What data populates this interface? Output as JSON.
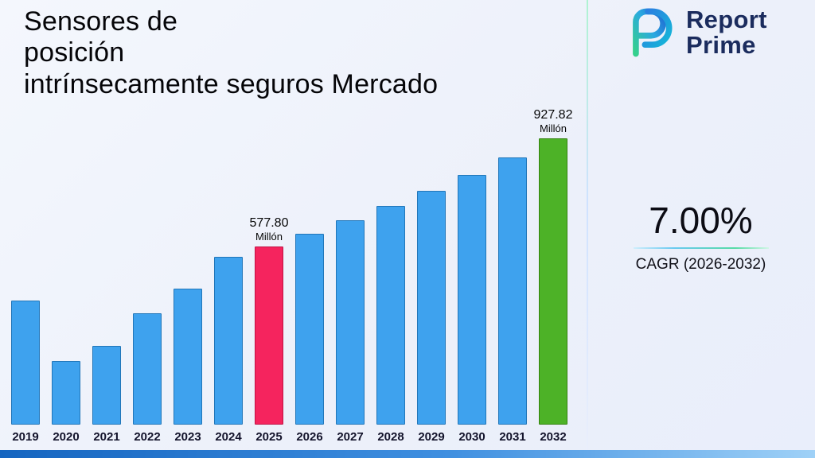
{
  "title": {
    "lines": [
      "Sensores de",
      "posición",
      "intrínsecamente seguros Mercado"
    ]
  },
  "brand": {
    "name_line1": "Report",
    "name_line2": "Prime"
  },
  "stats": {
    "cagr_value": "7.00%",
    "cagr_label": "CAGR (2026-2032)"
  },
  "chart_data": {
    "type": "bar",
    "title": "Sensores de posición intrínsecamente seguros Mercado",
    "xlabel": "",
    "ylabel": "",
    "unit": "Millón",
    "categories": [
      "2019",
      "2020",
      "2021",
      "2022",
      "2023",
      "2024",
      "2025",
      "2026",
      "2027",
      "2028",
      "2029",
      "2030",
      "2031",
      "2032"
    ],
    "values": [
      403,
      206,
      256,
      362,
      440,
      545,
      577.8,
      618.25,
      661.52,
      707.83,
      757.38,
      810.39,
      867.12,
      927.82
    ],
    "ylim": [
      0,
      1000
    ],
    "grid": false,
    "legend": false,
    "annotations": {
      "2025": [
        "577.80",
        "Millón"
      ],
      "2032": [
        "927.82",
        "Millón"
      ]
    },
    "colors": {
      "bar_fill": "#3EA2EE",
      "bar_stroke": "#2176b9",
      "highlights": {
        "2025": {
          "fill": "#F5245E",
          "stroke": "#c01144"
        },
        "2032": {
          "fill": "#4DB227",
          "stroke": "#35830f"
        }
      }
    }
  },
  "decor": {
    "divider_gradient": [
      "#aef3d2",
      "#cfe2ff",
      "#e9eefc"
    ],
    "bottom_strip_gradient": [
      "#1565c0",
      "#9fd1f7"
    ],
    "brand_navy": "#1b2c5e"
  }
}
